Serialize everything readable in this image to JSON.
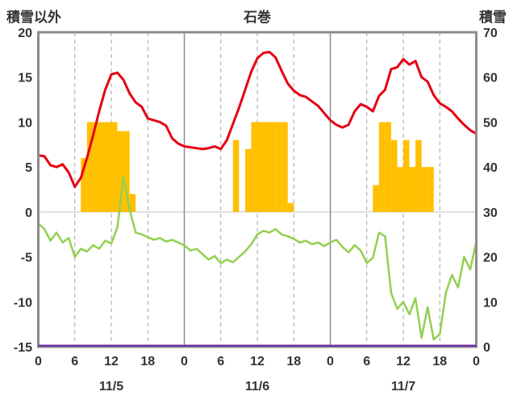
{
  "chart_data": {
    "type": "line+bar",
    "title": "石巻",
    "background": "#FFFFFF",
    "frame_color": "#8C8C8C",
    "text_color": "#333333",
    "left_axis": {
      "label": "積雪以外",
      "min": -15,
      "max": 20,
      "ticks": [
        20,
        15,
        10,
        5,
        0,
        -5,
        -10,
        -15
      ]
    },
    "right_axis": {
      "label": "積雪",
      "min": 0,
      "max": 70,
      "ticks": [
        70,
        60,
        50,
        40,
        30,
        20,
        10,
        0
      ]
    },
    "x_axis": {
      "total_hours": 72,
      "tick_hours": [
        0,
        6,
        12,
        18,
        24,
        30,
        36,
        42,
        48,
        54,
        60,
        66,
        72
      ],
      "tick_labels": [
        "0",
        "6",
        "12",
        "18",
        "0",
        "6",
        "12",
        "18",
        "0",
        "6",
        "12",
        "18",
        "0"
      ],
      "grid_hours_dashed": [
        6,
        12,
        18,
        30,
        36,
        42,
        54,
        60,
        66
      ],
      "grid_hours_solid": [
        24,
        48
      ],
      "date_labels": [
        "11/5",
        "11/6",
        "11/7"
      ]
    },
    "series": [
      {
        "name": "orange-bars",
        "type": "bar",
        "axis": "left",
        "color": "#FFC000",
        "entries": [
          [
            7,
            6
          ],
          [
            8,
            10
          ],
          [
            9,
            10
          ],
          [
            10,
            10
          ],
          [
            11,
            10
          ],
          [
            12,
            10
          ],
          [
            13,
            9
          ],
          [
            14,
            9
          ],
          [
            15,
            2
          ],
          [
            32,
            8
          ],
          [
            34,
            7
          ],
          [
            35,
            10
          ],
          [
            36,
            10
          ],
          [
            37,
            10
          ],
          [
            38,
            10
          ],
          [
            39,
            10
          ],
          [
            40,
            10
          ],
          [
            41,
            1
          ],
          [
            55,
            3
          ],
          [
            56,
            10
          ],
          [
            57,
            10
          ],
          [
            58,
            8
          ],
          [
            59,
            5
          ],
          [
            60,
            8
          ],
          [
            61,
            5
          ],
          [
            62,
            8
          ],
          [
            63,
            5
          ],
          [
            64,
            5
          ]
        ]
      },
      {
        "name": "green-line",
        "type": "line",
        "axis": "left",
        "color": "#92D050",
        "width": 2.5,
        "values": [
          -1.3,
          -1.9,
          -3.2,
          -2.3,
          -3.4,
          -2.9,
          -5.0,
          -4.1,
          -4.4,
          -3.7,
          -4.1,
          -3.2,
          -3.5,
          -1.7,
          3.9,
          0.3,
          -2.3,
          -2.5,
          -2.8,
          -3.1,
          -2.9,
          -3.3,
          -3.1,
          -3.4,
          -3.7,
          -4.3,
          -4.1,
          -4.7,
          -5.3,
          -4.9,
          -5.7,
          -5.3,
          -5.6,
          -5.0,
          -4.4,
          -3.6,
          -2.5,
          -2.1,
          -2.3,
          -1.9,
          -2.5,
          -2.7,
          -3.0,
          -3.4,
          -3.2,
          -3.6,
          -3.4,
          -3.8,
          -3.4,
          -3.1,
          -3.9,
          -4.5,
          -3.7,
          -4.3,
          -5.7,
          -5.1,
          -2.3,
          -2.7,
          -9.0,
          -10.8,
          -10.0,
          -11.4,
          -9.6,
          -14.0,
          -10.6,
          -14.2,
          -13.6,
          -9.0,
          -7.0,
          -8.4,
          -5.0,
          -6.4,
          -3.3
        ]
      },
      {
        "name": "red-line",
        "type": "line",
        "axis": "left",
        "color": "#E60012",
        "width": 3,
        "values": [
          6.3,
          6.2,
          5.2,
          5.0,
          5.3,
          4.4,
          2.8,
          3.8,
          6.0,
          8.5,
          11.2,
          13.6,
          15.3,
          15.5,
          14.7,
          13.2,
          12.2,
          11.7,
          10.4,
          10.2,
          10.0,
          9.6,
          8.2,
          7.6,
          7.3,
          7.2,
          7.1,
          7.0,
          7.1,
          7.3,
          7.0,
          8.0,
          9.8,
          11.6,
          13.6,
          15.6,
          17.1,
          17.7,
          17.8,
          17.2,
          15.7,
          14.3,
          13.5,
          13.0,
          12.8,
          12.3,
          11.8,
          11.0,
          10.2,
          9.7,
          9.4,
          9.7,
          11.2,
          12.0,
          11.7,
          11.2,
          12.9,
          13.6,
          15.9,
          16.1,
          17.0,
          16.4,
          16.8,
          15.0,
          14.5,
          13.0,
          12.1,
          11.7,
          11.2,
          10.4,
          9.7,
          9.1,
          8.7
        ]
      },
      {
        "name": "purple-line",
        "type": "line",
        "axis": "right",
        "color": "#7030A0",
        "width": 2.5,
        "constant": 0
      }
    ]
  }
}
